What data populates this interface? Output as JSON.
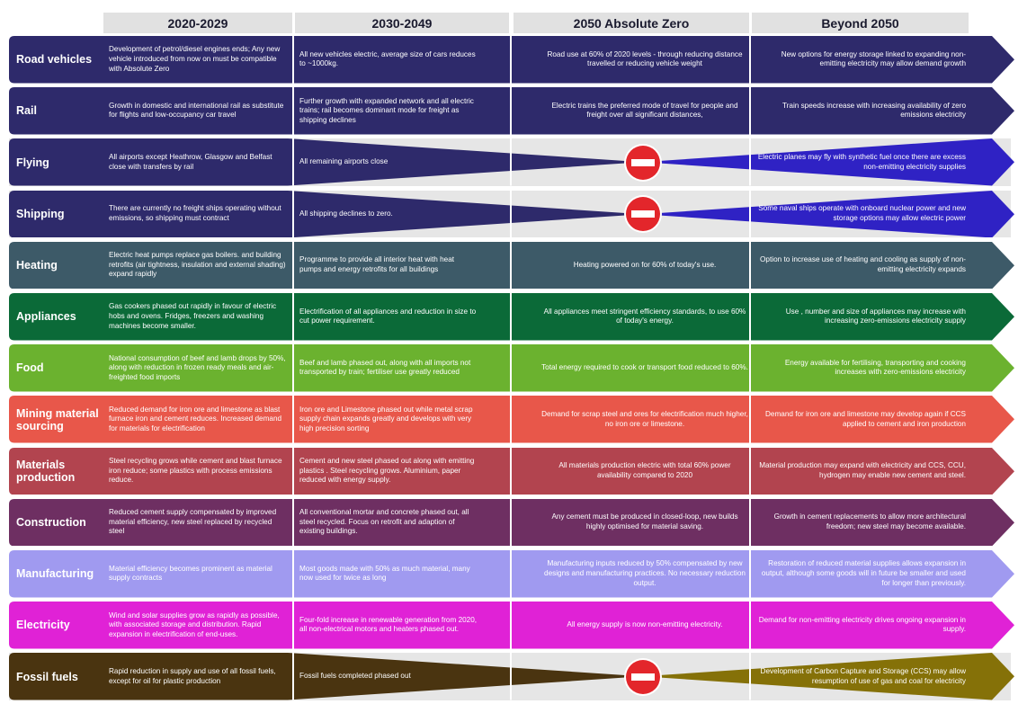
{
  "headers": [
    "2020-2029",
    "2030-2049",
    "2050 Absolute Zero",
    "Beyond 2050"
  ],
  "rows": [
    {
      "label": "Road vehicles",
      "color": "#2e2a6b",
      "shape": "full",
      "cells": [
        "Development of petrol/diesel engines ends; Any new vehicle introduced from now on must be compatible with Absolute Zero",
        "All new vehicles electric, average size of cars reduces to ~1000kg.",
        "Road use at 60% of 2020 levels - through reducing distance travelled or reducing vehicle weight",
        "New options for energy storage linked to expanding non-emitting electricity may allow demand growth"
      ]
    },
    {
      "label": "Rail",
      "color": "#2e2a6b",
      "shape": "full",
      "cells": [
        "Growth in domestic and international rail as substitute for flights and low-occupancy car travel",
        "Further growth with expanded network and all electric trains; rail becomes dominant mode for freight as shipping declines",
        "Electric trains the preferred mode of travel for people and freight over all significant distances,",
        "Train speeds increase with increasing availability of zero emissions electricity"
      ]
    },
    {
      "label": "Flying",
      "color": "#2e2a6b",
      "shape": "taper",
      "color2": "#2f22c4",
      "cells": [
        "All airports except Heathrow, Glasgow and Belfast close with transfers by rail",
        "All remaining airports close",
        "",
        "Electric planes may fly with synthetic fuel once there are excess non-emitting electricity supplies"
      ]
    },
    {
      "label": "Shipping",
      "color": "#2e2a6b",
      "shape": "taper",
      "color2": "#2f22c4",
      "cells": [
        "There are currently no freight ships operating without emissions, so shipping must contract",
        "All shipping declines to zero.",
        "",
        "Some naval ships operate with onboard nuclear power and new storage options may allow electric power"
      ]
    },
    {
      "label": "Heating",
      "color": "#3d5a68",
      "shape": "full",
      "cells": [
        "Electric heat pumps replace gas boilers. and building retrofits (air tightness, insulation and external shading) expand rapidly",
        "Programme to provide all interior heat with heat pumps and energy retrofits for all buildings",
        "Heating powered on for 60% of today's use.",
        "Option to increase use of heating and cooling as supply of non-emitting electricity expands"
      ]
    },
    {
      "label": "Appliances",
      "color": "#0b6a38",
      "shape": "full",
      "cells": [
        "Gas cookers phased out rapidly in favour of electric hobs and ovens. Fridges, freezers and washing machines become smaller.",
        "Electrification of all appliances and reduction in size to cut power requirement.",
        "All appliances meet stringent efficiency standards, to use 60% of today's energy.",
        "Use , number and size of appliances may increase with increasing zero-emissions electricity supply"
      ]
    },
    {
      "label": "Food",
      "color": "#6bb22f",
      "shape": "full",
      "cells": [
        "National consumption of beef and lamb drops by 50%, along with reduction in frozen ready meals and air-freighted food imports",
        "Beef and lamb phased out, along with all imports not transported by train; fertiliser use greatly reduced",
        "Total energy required to cook or transport food reduced to 60%.",
        "Energy available for fertilising, transporting and cooking increases with zero-emissions electricity"
      ]
    },
    {
      "label": "Mining material sourcing",
      "color": "#e8574a",
      "shape": "full",
      "cells": [
        "Reduced demand for iron ore and limestone as blast furnace iron and cement reduces. Increased demand for materials for electrification",
        "Iron ore and Limestone phased out while metal scrap supply chain expands greatly and develops with very high precision sorting",
        "Demand for scrap steel and ores for electrification much higher, no iron ore or limestone.",
        "Demand for iron ore and limestone may develop again if CCS applied to cement and iron production"
      ]
    },
    {
      "label": "Materials production",
      "color": "#b2444f",
      "shape": "full",
      "cells": [
        "Steel recycling grows while cement and blast furnace iron reduce; some plastics with process emissions reduce.",
        "Cement and new steel phased out along with emitting plastics . Steel recycling grows. Aluminium, paper reduced with energy supply.",
        "All materials production electric with total 60% power availability compared to 2020",
        "Material production may expand with electricity and CCS, CCU, hydrogen may enable new cement and steel."
      ]
    },
    {
      "label": "Construction",
      "color": "#6e2f62",
      "shape": "full",
      "cells": [
        "Reduced cement supply compensated by improved material efficiency, new steel replaced by recycled steel",
        "All conventional mortar and concrete phased out, all steel recycled. Focus on retrofit and adaption of existing buildings.",
        "Any cement must be produced in closed-loop, new builds highly optimised for material saving.",
        "Growth in cement replacements to allow more architectural freedom; new steel may become available."
      ]
    },
    {
      "label": "Manufacturing",
      "color": "#a09af0",
      "shape": "full",
      "cells": [
        "Material efficiency becomes prominent as material supply contracts",
        "Most goods made with 50% as much material, many now used for twice as long",
        "Manufacturing inputs reduced by 50% compensated by new designs and manufacturing practices. No necessary reduction output.",
        "Restoration of reduced material supplies allows expansion in output, although some goods will in future be smaller and used for longer than previously."
      ]
    },
    {
      "label": "Electricity",
      "color": "#e022d6",
      "shape": "full",
      "cells": [
        "Wind and solar supplies grow as rapidly as possible, with associated storage and distribution. Rapid expansion in electrification of end-uses.",
        "Four-fold increase in renewable generation from 2020, all non-electrical motors and heaters phased out.",
        "All energy supply is now non-emitting electricity.",
        "Demand for non-emitting electricity drives ongoing expansion in supply."
      ]
    },
    {
      "label": "Fossil fuels",
      "color": "#4a3410",
      "shape": "taper",
      "color2": "#857108",
      "cells": [
        "Rapid reduction in supply and use of all fossil fuels, except for oil for plastic production",
        "Fossil fuels completed phased out",
        "",
        "Development of Carbon Capture and Storage (CCS) may allow resumption of use of gas and coal for electricity"
      ]
    }
  ]
}
